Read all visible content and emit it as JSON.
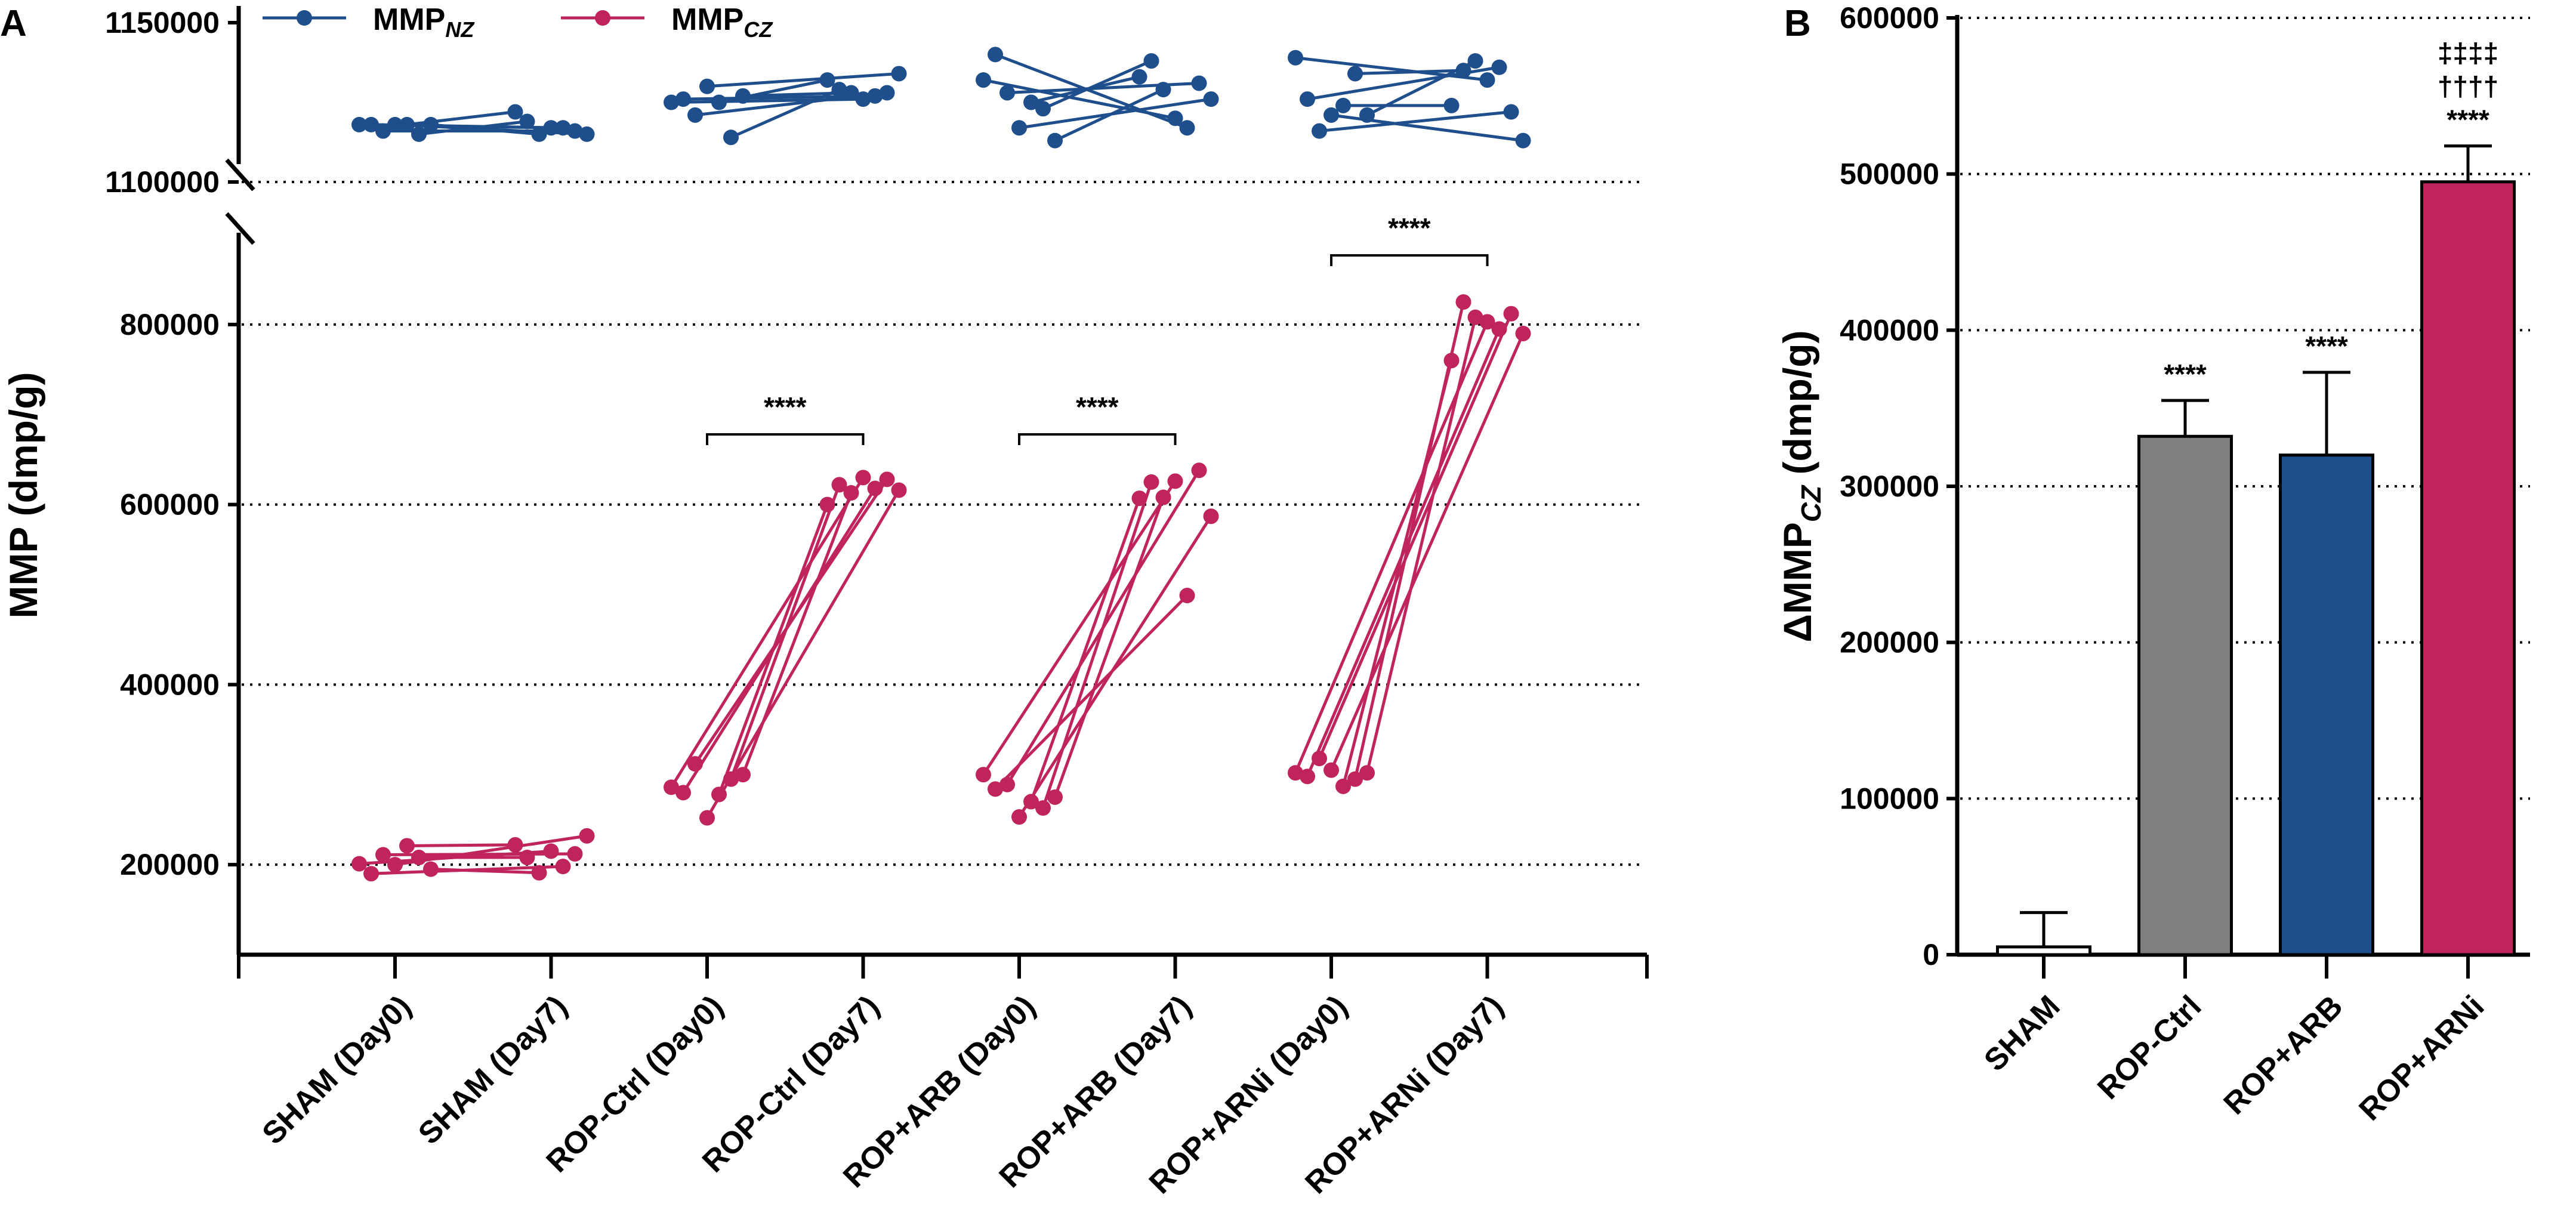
{
  "panels": {
    "a": "A",
    "b": "B"
  },
  "colors": {
    "nz": "#1f4e8c",
    "cz": "#c0245c",
    "gray": "#7f7f7f",
    "white": "#ffffff"
  },
  "chart_data": [
    {
      "id": "A",
      "type": "line",
      "subtype": "before-after paired",
      "ylabel": "MMP (dmp/g)",
      "yaxis_break": true,
      "ylim_upper": [
        1100000,
        1150000
      ],
      "ylim_lower": [
        100000,
        900000
      ],
      "yticks_upper": [
        "1100000",
        "1150000"
      ],
      "yticks_lower": [
        "200000",
        "400000",
        "600000",
        "800000"
      ],
      "categories": [
        "SHAM (Day0)",
        "SHAM (Day7)",
        "ROP-Ctrl (Day0)",
        "ROP-Ctrl (Day7)",
        "ROP+ARB (Day0)",
        "ROP+ARB (Day7)",
        "ROP+ARNi (Day0)",
        "ROP+ARNi (Day7)"
      ],
      "legend": [
        {
          "main": "MMP",
          "sub": "NZ"
        },
        {
          "main": "MMP",
          "sub": "CZ"
        }
      ],
      "series": [
        {
          "name": "MMPNZ",
          "groups": [
            {
              "day0": [
                1118000,
                1118000,
                1116000,
                1118000,
                1118000,
                1115000,
                1118000
              ],
              "day7": [
                1117000,
                1117000,
                1116000,
                1115000,
                1122000,
                1119000,
                1115000
              ]
            },
            {
              "day0": [
                1125000,
                1126000,
                1121000,
                1130000,
                1125000,
                1114000,
                1127000
              ],
              "day7": [
                1126000,
                1127000,
                1128000,
                1134000,
                1132000,
                1129000,
                1128000
              ]
            },
            {
              "day0": [
                1132000,
                1140000,
                1128000,
                1117000,
                1125000,
                1123000,
                1113000
              ],
              "day7": [
                1120000,
                1117000,
                1131000,
                1126000,
                1133000,
                1138000,
                1129000
              ]
            },
            {
              "day0": [
                1139000,
                1126000,
                1116000,
                1121000,
                1124000,
                1134000,
                1121000
              ],
              "day7": [
                1132000,
                1136000,
                1122000,
                1113000,
                1124000,
                1135000,
                1138000
              ]
            }
          ]
        },
        {
          "name": "MMPCZ",
          "groups": [
            {
              "day0": [
                201000,
                190000,
                211000,
                200000,
                221000,
                208000,
                195000
              ],
              "day7": [
                215000,
                198000,
                212000,
                232000,
                222000,
                208000,
                191000
              ]
            },
            {
              "day0": [
                286000,
                280000,
                312000,
                252000,
                278000,
                295000,
                300000
              ],
              "day7": [
                630000,
                618000,
                628000,
                616000,
                600000,
                622000,
                613000
              ]
            },
            {
              "day0": [
                300000,
                284000,
                289000,
                253000,
                270000,
                263000,
                275000
              ],
              "day7": [
                626000,
                499000,
                638000,
                587000,
                607000,
                625000,
                608000
              ]
            },
            {
              "day0": [
                302000,
                298000,
                318000,
                305000,
                287000,
                295000,
                302000
              ],
              "day7": [
                803000,
                795000,
                812000,
                790000,
                760000,
                825000,
                808000
              ]
            }
          ]
        }
      ],
      "significance": [
        {
          "between": "ROP-Ctrl",
          "label": "****"
        },
        {
          "between": "ROP+ARB",
          "label": "****"
        },
        {
          "between": "ROP+ARNi",
          "label": "****"
        }
      ]
    },
    {
      "id": "B",
      "type": "bar",
      "ylabel_main": "ΔMMP",
      "ylabel_sub": "CZ",
      "ylabel_unit": " (dmp/g)",
      "ylim": [
        0,
        600000
      ],
      "yticks": [
        "0",
        "100000",
        "200000",
        "300000",
        "400000",
        "500000",
        "600000"
      ],
      "categories": [
        "SHAM",
        "ROP-Ctrl",
        "ROP+ARB",
        "ROP+ARNi"
      ],
      "values": [
        5000,
        332000,
        320000,
        495000
      ],
      "error_upper": [
        27000,
        355000,
        373000,
        518000
      ],
      "bar_colors": [
        "#ffffff",
        "#7f7f7f",
        "#1f4e8c",
        "#c0245c"
      ],
      "annotations": [
        [],
        [
          "****"
        ],
        [
          "****"
        ],
        [
          "‡‡‡‡",
          "††††",
          "****"
        ]
      ]
    }
  ]
}
